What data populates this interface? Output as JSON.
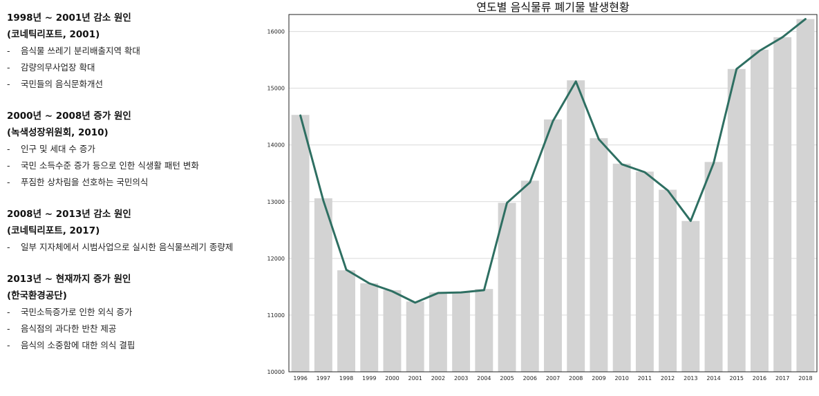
{
  "left_panel": {
    "sections": [
      {
        "heading": "1998년 ~ 2001년 감소 원인",
        "source": "(코네틱리포트, 2001)",
        "items": [
          "음식물 쓰레기 분리배출지역 확대",
          "감량의무사업장 확대",
          "국민들의 음식문화개선"
        ]
      },
      {
        "heading": "2000년 ~ 2008년 증가 원인",
        "source": "(녹색성장위원회, 2010)",
        "items": [
          "인구 및 세대 수 증가",
          "국민 소득수준 증가 등으로 인한 식생활 패턴 변화",
          "푸짐한 상차림을 선호하는 국민의식"
        ]
      },
      {
        "heading": "2008년 ~ 2013년 감소 원인",
        "source": "(코네틱리포트, 2017)",
        "items": [
          "일부 지자체에서 시범사업으로 실시한 음식물쓰레기 종량제"
        ]
      },
      {
        "heading": "2013년 ~ 현재까지 증가 원인",
        "source": "(한국환경공단)",
        "items": [
          "국민소득증가로 인한 외식 증가",
          "음식점의 과다한 반찬 제공",
          "음식의 소중함에 대한 의식 결핍"
        ]
      }
    ]
  },
  "chart_data": {
    "type": "bar",
    "title": "연도별 음식물류 폐기물 발생현황",
    "xlabel": "",
    "ylabel": "",
    "categories": [
      "1996",
      "1997",
      "1998",
      "1999",
      "2000",
      "2001",
      "2002",
      "2003",
      "2004",
      "2005",
      "2006",
      "2007",
      "2008",
      "2009",
      "2010",
      "2011",
      "2012",
      "2013",
      "2014",
      "2015",
      "2016",
      "2017",
      "2018"
    ],
    "series": [
      {
        "type": "bar",
        "color": "#d3d3d3",
        "values": [
          14530,
          13060,
          11790,
          11560,
          11440,
          11240,
          11400,
          11410,
          11460,
          12980,
          13370,
          14450,
          15140,
          14120,
          13670,
          13530,
          13210,
          12660,
          13700,
          15340,
          15680,
          15900,
          16220
        ]
      },
      {
        "type": "line",
        "color": "#2e6f62",
        "values": [
          14520,
          13020,
          11800,
          11560,
          11420,
          11220,
          11390,
          11400,
          11440,
          12980,
          13340,
          14420,
          15120,
          14100,
          13660,
          13520,
          13200,
          12660,
          13680,
          15340,
          15660,
          15900,
          16220
        ]
      }
    ],
    "ylim": [
      10000,
      16300
    ],
    "yticks": [
      10000,
      11000,
      12000,
      13000,
      14000,
      15000,
      16000
    ],
    "grid": true,
    "legend": "none"
  }
}
